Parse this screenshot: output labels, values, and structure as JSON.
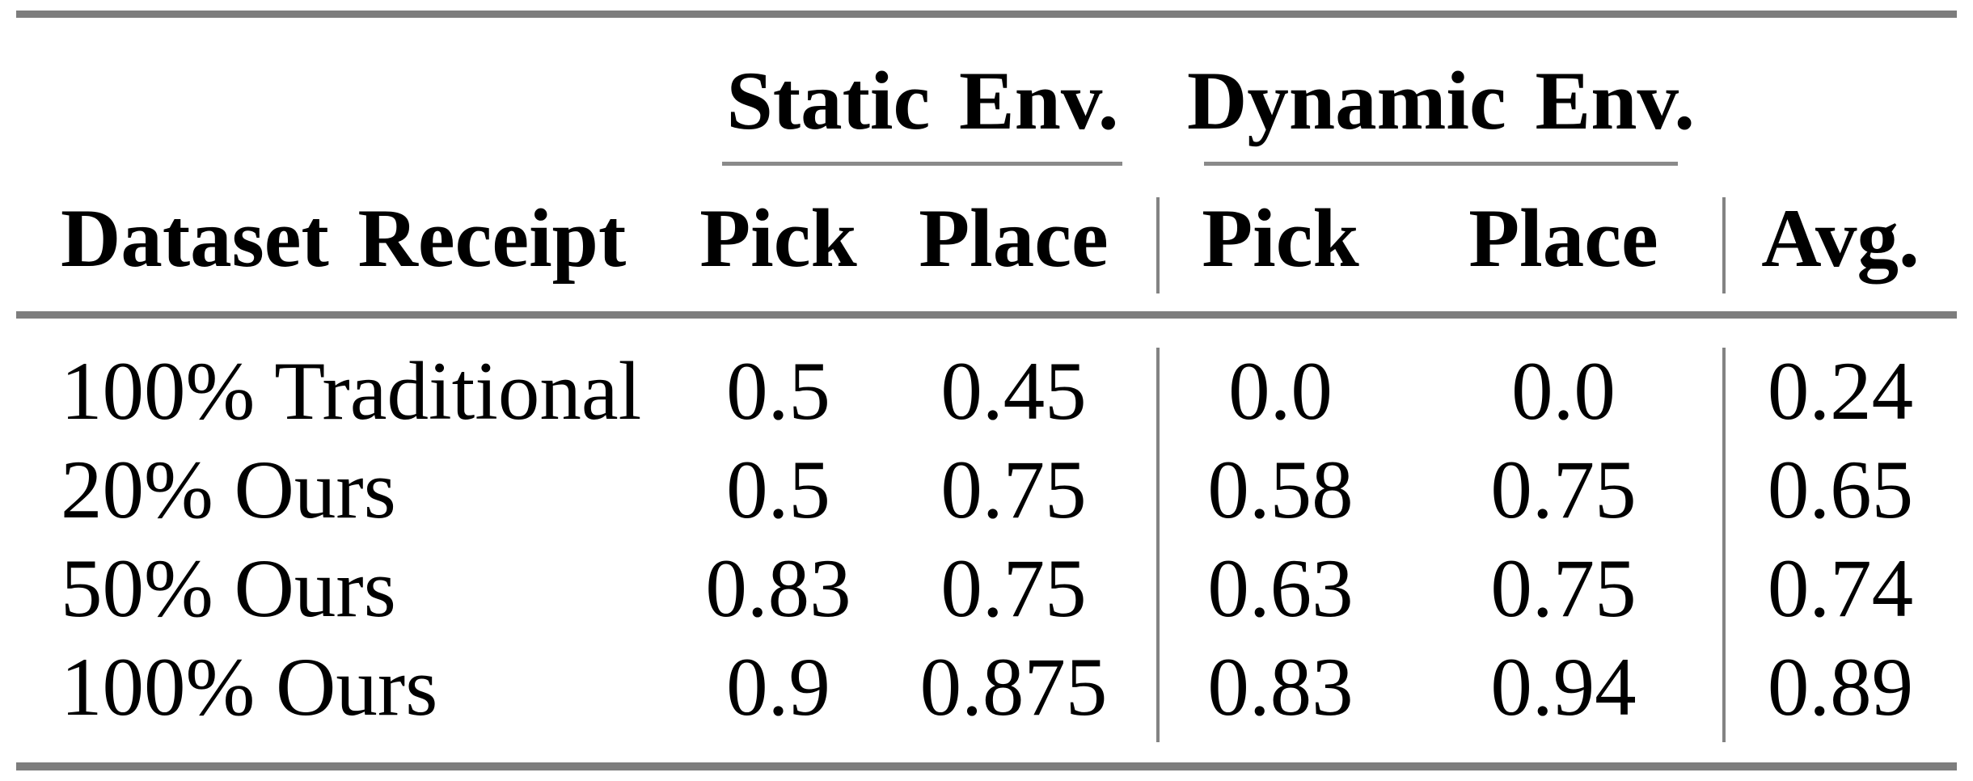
{
  "table": {
    "group_headers": [
      {
        "label": "Static Env."
      },
      {
        "label": "Dynamic Env."
      }
    ],
    "columns": [
      "Dataset Receipt",
      "Pick",
      "Place",
      "Pick",
      "Place",
      "Avg."
    ],
    "rows": [
      {
        "label": "100% Traditional",
        "values": [
          "0.5",
          "0.45",
          "0.0",
          "0.0",
          "0.24"
        ]
      },
      {
        "label": "20% Ours",
        "values": [
          "0.5",
          "0.75",
          "0.58",
          "0.75",
          "0.65"
        ]
      },
      {
        "label": "50% Ours",
        "values": [
          "0.83",
          "0.75",
          "0.63",
          "0.75",
          "0.74"
        ]
      },
      {
        "label": "100% Ours",
        "values": [
          "0.9",
          "0.875",
          "0.83",
          "0.94",
          "0.89"
        ]
      }
    ]
  },
  "colors": {
    "text": "#000000",
    "rule_gray": "#7d7d7d",
    "background": "#ffffff"
  }
}
